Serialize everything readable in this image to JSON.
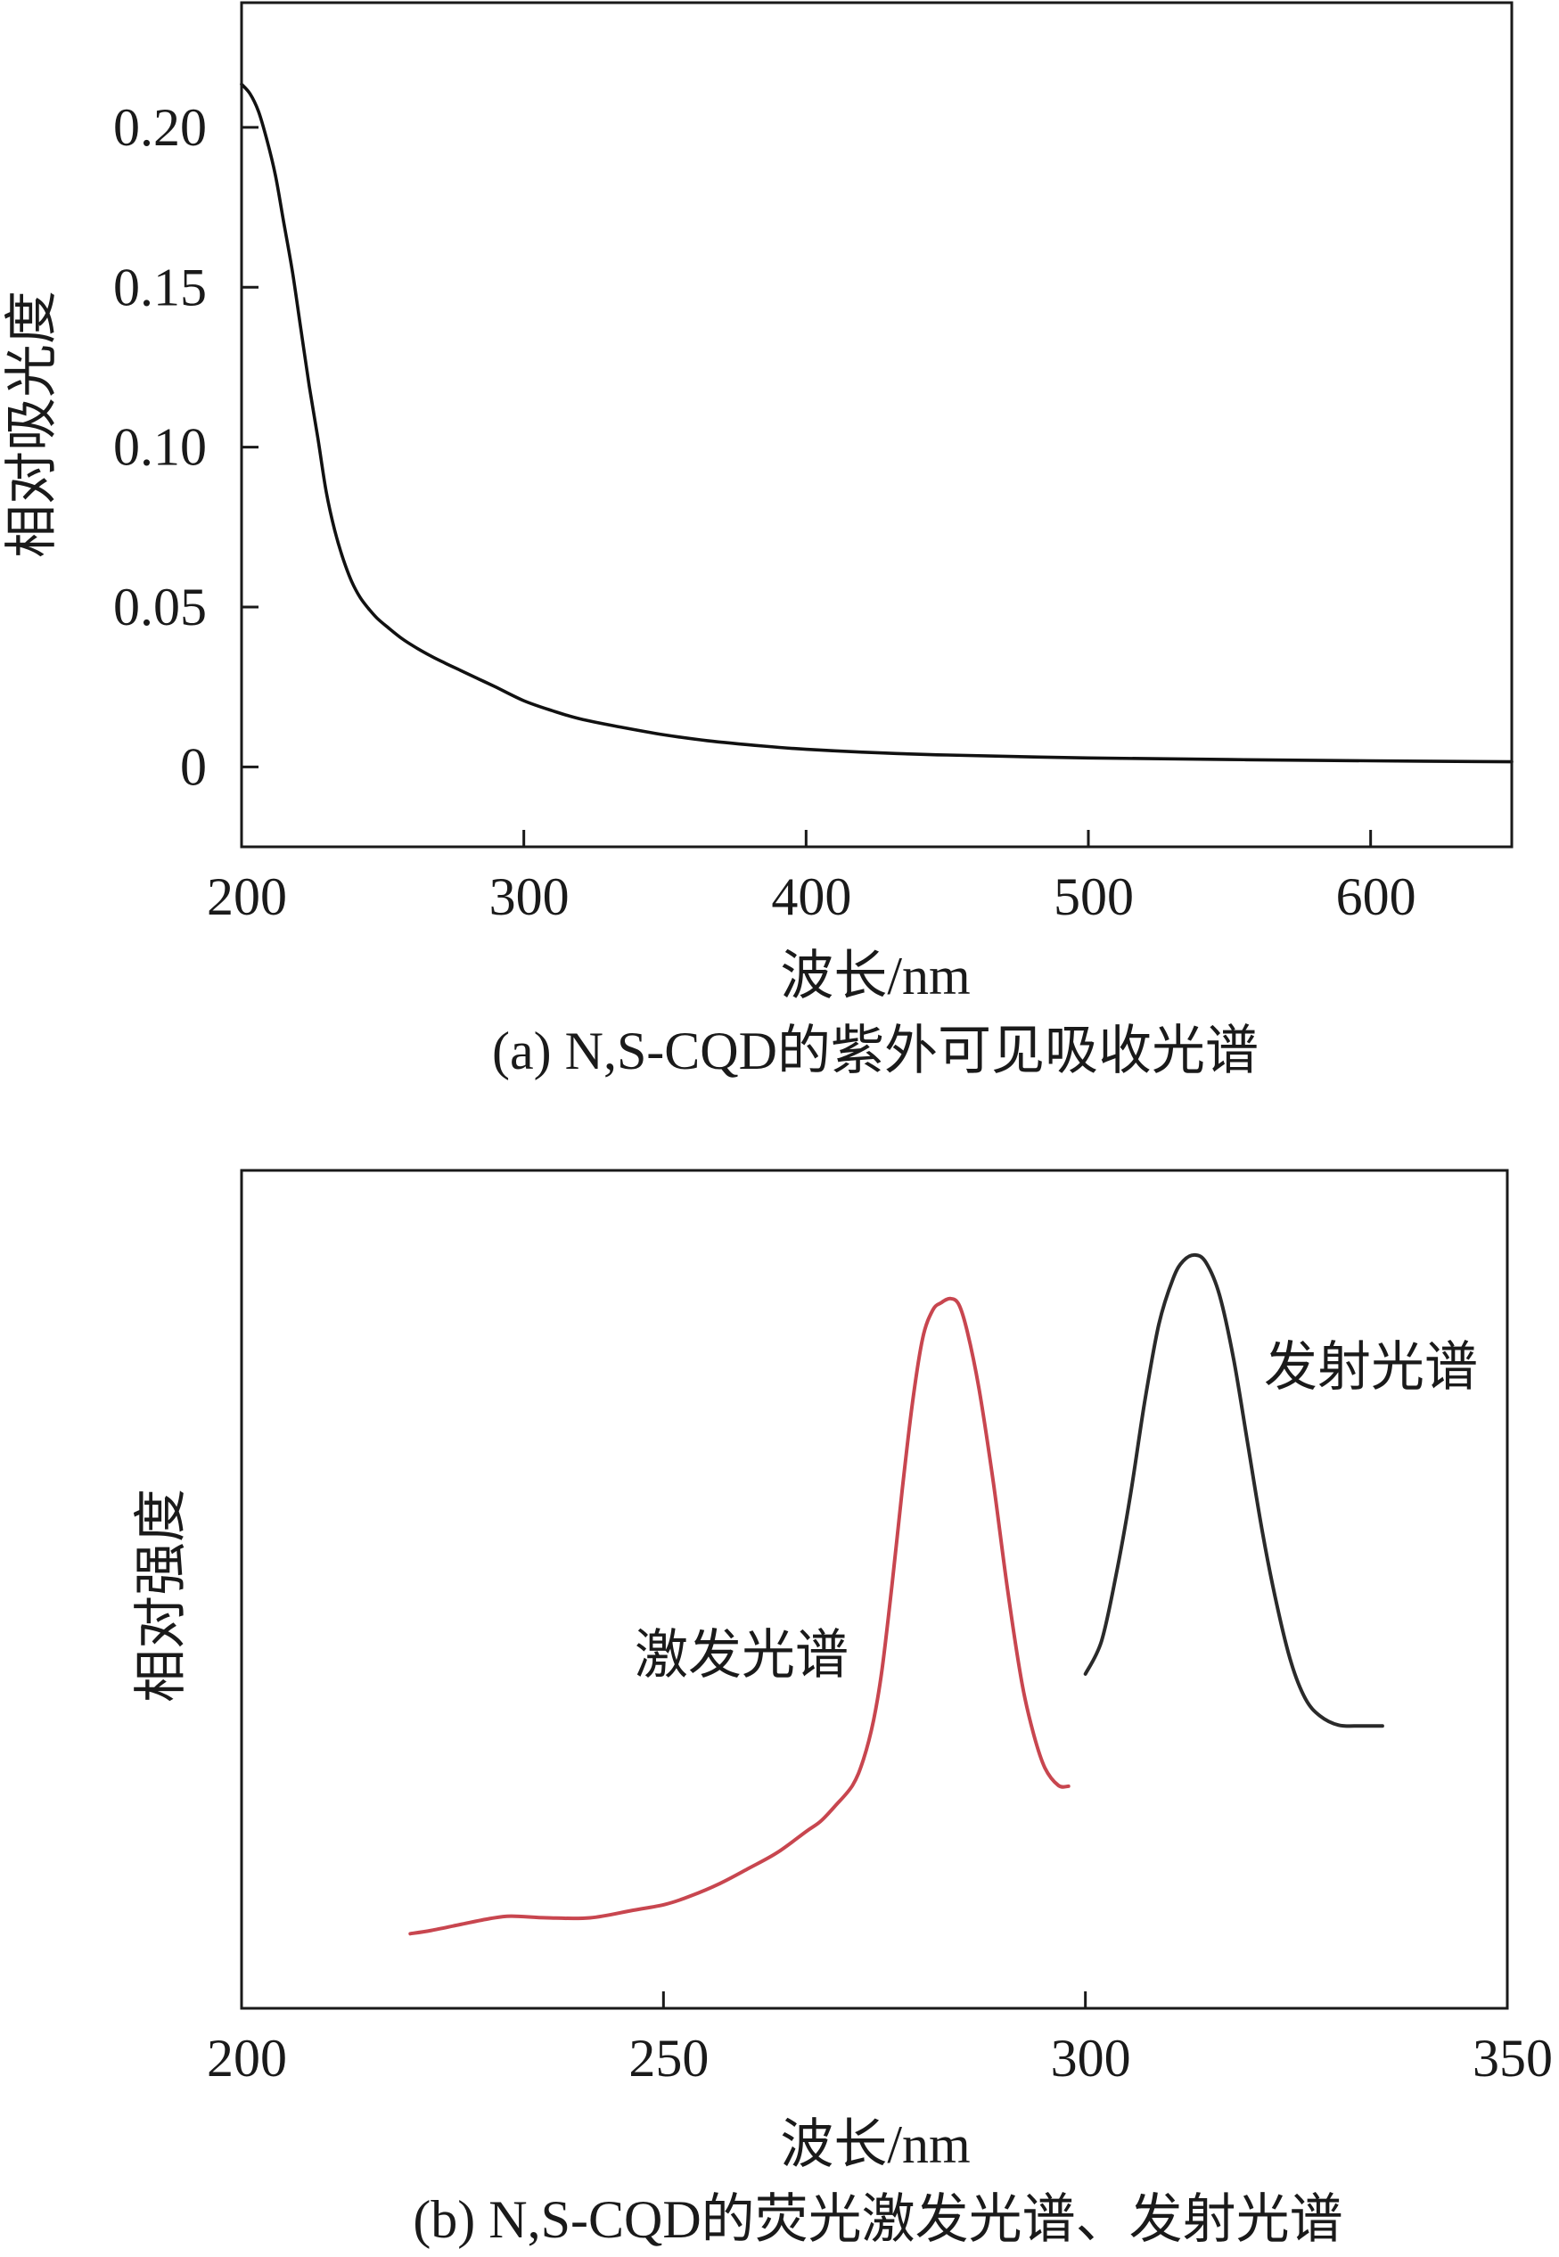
{
  "chart_data": [
    {
      "type": "line",
      "caption": "(a) N,S-CQD的紫外可见吸收光谱",
      "xlabel": "波长/nm",
      "ylabel": "相对吸光度",
      "xlim": [
        200,
        650
      ],
      "ylim": [
        -0.025,
        0.239
      ],
      "xticks": [
        200,
        300,
        400,
        500,
        600
      ],
      "xtick_labels": [
        "200",
        "300",
        "400",
        "500",
        "600"
      ],
      "yticks": [
        0,
        0.05,
        0.1,
        0.15,
        0.2
      ],
      "ytick_labels": [
        "0",
        "0.05",
        "0.10",
        "0.15",
        "0.20"
      ],
      "grid": false,
      "legend": "none",
      "series": [
        {
          "color": "#111111",
          "x": [
            200,
            203,
            206,
            209,
            212,
            215,
            218,
            221,
            224,
            227,
            230,
            233,
            236,
            239,
            242,
            245,
            248,
            252,
            257,
            262,
            267,
            272,
            278,
            284,
            290,
            300,
            310,
            320,
            334,
            350,
            365,
            385,
            400,
            420,
            450,
            500,
            550,
            600,
            650
          ],
          "y": [
            0.2135,
            0.2105,
            0.205,
            0.196,
            0.185,
            0.17,
            0.155,
            0.137,
            0.119,
            0.103,
            0.086,
            0.074,
            0.065,
            0.058,
            0.053,
            0.0495,
            0.0465,
            0.0435,
            0.04,
            0.0372,
            0.0347,
            0.0325,
            0.03,
            0.0275,
            0.025,
            0.0207,
            0.0176,
            0.015,
            0.0125,
            0.01,
            0.0082,
            0.0065,
            0.0055,
            0.0046,
            0.0037,
            0.0028,
            0.0023,
            0.0019,
            0.0016
          ]
        }
      ]
    },
    {
      "type": "line",
      "caption": "(b) N,S-CQD的荧光激发光谱、发射光谱",
      "xlabel": "波长/nm",
      "ylabel": "相对强度",
      "xlim": [
        200,
        350
      ],
      "ylim": [
        0,
        1
      ],
      "xticks": [
        200,
        250,
        300,
        350
      ],
      "xtick_labels": [
        "200",
        "250",
        "300",
        "350"
      ],
      "yticks": [],
      "ytick_labels": [],
      "grid": false,
      "legend": "none",
      "series": [
        {
          "name": "激发光谱",
          "color": "#c8464f",
          "x": [
            220.0,
            222.5,
            225.9,
            229.4,
            231.9,
            236.2,
            241.3,
            246.4,
            250.2,
            253.2,
            256.7,
            260.1,
            263.5,
            266.9,
            268.6,
            270.3,
            272.4,
            273.7,
            274.9,
            275.9,
            277.1,
            278.3,
            279.5,
            280.7,
            281.9,
            282.9,
            284.0,
            285.0,
            286.0,
            287.4,
            289.1,
            290.8,
            292.5,
            293.9,
            295.2,
            296.8,
            298.0
          ],
          "y": [
            0.089,
            0.093,
            0.1,
            0.107,
            0.11,
            0.108,
            0.108,
            0.117,
            0.124,
            0.134,
            0.149,
            0.167,
            0.186,
            0.211,
            0.223,
            0.241,
            0.266,
            0.297,
            0.344,
            0.404,
            0.507,
            0.619,
            0.722,
            0.799,
            0.833,
            0.842,
            0.847,
            0.84,
            0.808,
            0.739,
            0.627,
            0.498,
            0.387,
            0.326,
            0.287,
            0.266,
            0.265
          ]
        },
        {
          "name": "发射光谱",
          "color": "#2a2a2a",
          "x": [
            300.0,
            301.9,
            303.6,
            305.3,
            307.0,
            308.7,
            310.4,
            311.6,
            313.0,
            314.3,
            315.9,
            317.6,
            319.3,
            321.0,
            322.7,
            324.4,
            326.1,
            327.8,
            330.0,
            332.6,
            335.2
          ],
          "y": [
            0.399,
            0.438,
            0.515,
            0.61,
            0.722,
            0.816,
            0.871,
            0.892,
            0.899,
            0.89,
            0.851,
            0.773,
            0.67,
            0.567,
            0.481,
            0.412,
            0.369,
            0.349,
            0.338,
            0.337,
            0.337
          ]
        }
      ]
    }
  ]
}
